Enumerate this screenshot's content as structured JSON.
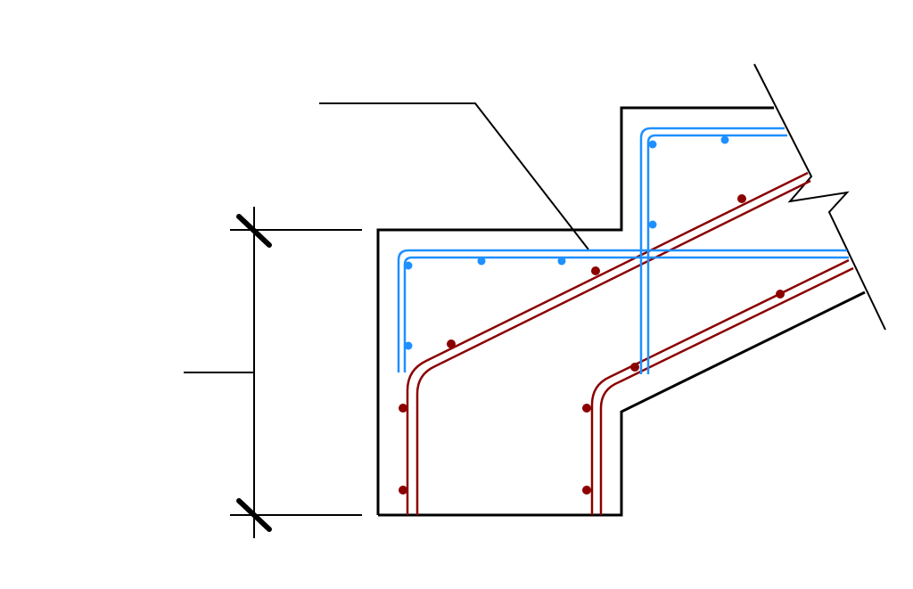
{
  "diagram": {
    "colors": {
      "concrete_outline": "#000000",
      "top_reinforcement": "#1e90ff",
      "bottom_reinforcement": "#8b0000",
      "background": "#ffffff"
    },
    "elements": {
      "section": "stepped-slab-cross-section",
      "leader": "callout-leader-line",
      "dimension": "vertical-dimension-line",
      "break_marks": [
        "break-line-upper",
        "break-line-lower"
      ]
    }
  }
}
